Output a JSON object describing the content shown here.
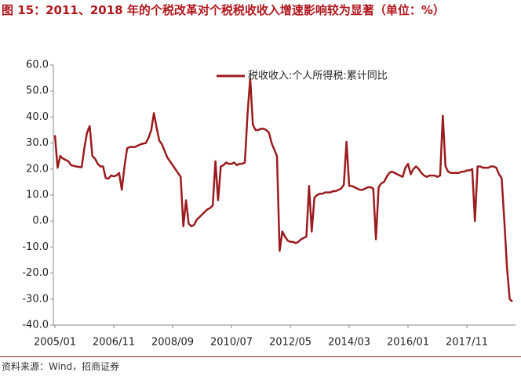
{
  "chart_data": {
    "type": "line",
    "title": "图 15：2011、2018 年的个税改革对个税税收收入增速影响较为显著（单位：%）",
    "source": "资料来源：Wind，招商证券",
    "categories": [
      "2005/01",
      null,
      null,
      null,
      null,
      null,
      null,
      null,
      null,
      null,
      null,
      null,
      null,
      null,
      null,
      null,
      null,
      null,
      null,
      null,
      null,
      null,
      "2006/11",
      null,
      null,
      null,
      null,
      null,
      null,
      null,
      null,
      null,
      null,
      null,
      null,
      null,
      null,
      null,
      null,
      null,
      null,
      null,
      null,
      null,
      "2008/09",
      null,
      null,
      null,
      null,
      null,
      null,
      null,
      null,
      null,
      null,
      null,
      null,
      null,
      null,
      null,
      null,
      null,
      null,
      null,
      null,
      null,
      "2010/07",
      null,
      null,
      null,
      null,
      null,
      null,
      null,
      null,
      null,
      null,
      null,
      null,
      null,
      null,
      null,
      null,
      null,
      null,
      null,
      null,
      null,
      "2012/05",
      null,
      null,
      null,
      null,
      null,
      null,
      null,
      null,
      null,
      null,
      null,
      null,
      null,
      null,
      null,
      null,
      null,
      null,
      null,
      null,
      null,
      "2014/03",
      null,
      null,
      null,
      null,
      null,
      null,
      null,
      null,
      null,
      null,
      null,
      null,
      null,
      null,
      null,
      null,
      null,
      null,
      null,
      null,
      null,
      "2016/01",
      null,
      null,
      null,
      null,
      null,
      null,
      null,
      null,
      null,
      null,
      null,
      null,
      null,
      null,
      null,
      null,
      null,
      null,
      null,
      null,
      null,
      "2017/11",
      null,
      null,
      null,
      null,
      null,
      null,
      null,
      null,
      null,
      null,
      null,
      null,
      null,
      null,
      null,
      null,
      null
    ],
    "series": [
      {
        "name": "税收收入:个人所得税:累计同比",
        "color": "#9b1b1e",
        "values": [
          33,
          20.5,
          25,
          24,
          23.5,
          23,
          21.5,
          21.2,
          21,
          20.8,
          20.7,
          28,
          34,
          36.5,
          25,
          24,
          22,
          21,
          21,
          16.5,
          16.3,
          17.5,
          17.2,
          17.5,
          18.5,
          12,
          21,
          28,
          28.5,
          28.5,
          28.5,
          29,
          29.5,
          29.8,
          30,
          32,
          35,
          41.5,
          36,
          31,
          29.5,
          27,
          24.5,
          23,
          21.5,
          20,
          18.5,
          17,
          -2,
          8,
          -1,
          -2,
          -1.5,
          0.5,
          1.5,
          2.5,
          3.5,
          4.5,
          5,
          6,
          23,
          8,
          21,
          21.5,
          22.5,
          22,
          22,
          22.5,
          21.5,
          22,
          22,
          22.5,
          41,
          55,
          37,
          35,
          35,
          35.5,
          35.5,
          35,
          34,
          30,
          27.5,
          25,
          -11.5,
          -4,
          -6,
          -7.5,
          -8,
          -8,
          -8.5,
          -8,
          -7,
          -6.5,
          -6,
          13.5,
          -4,
          9,
          10,
          10.5,
          10.5,
          11,
          11,
          11,
          11.5,
          11.5,
          12,
          12.5,
          14,
          30.5,
          13.5,
          13.5,
          13,
          12.5,
          12,
          12,
          12.5,
          13,
          13,
          12.5,
          -7,
          13,
          14.5,
          15,
          17,
          18.5,
          19,
          18.5,
          18,
          17.5,
          17,
          20.5,
          22,
          18,
          20,
          21,
          20,
          18.5,
          17.5,
          17,
          17.5,
          17.5,
          17.5,
          17,
          17.5,
          40.5,
          21,
          19,
          18.5,
          18.5,
          18.5,
          18.5,
          19,
          19,
          19.5,
          19.5,
          20,
          0,
          21,
          21,
          20.5,
          20.5,
          20.5,
          21,
          21,
          20.5,
          18,
          16.5,
          0,
          -18,
          -30,
          -31
        ]
      }
    ],
    "ylim": [
      -40,
      60
    ],
    "yticks": [
      {
        "value": 60,
        "label": "60.0"
      },
      {
        "value": 50,
        "label": "50.0"
      },
      {
        "value": 40,
        "label": "40.0"
      },
      {
        "value": 30,
        "label": "30.0"
      },
      {
        "value": 20,
        "label": "20.0"
      },
      {
        "value": 10,
        "label": "10.0"
      },
      {
        "value": 0,
        "label": "0.0"
      },
      {
        "value": -10,
        "label": "-10.0"
      },
      {
        "value": -20,
        "label": "-20.0"
      },
      {
        "value": -30,
        "label": "-30.0"
      },
      {
        "value": -40,
        "label": "-40.0"
      }
    ],
    "grid": false
  }
}
